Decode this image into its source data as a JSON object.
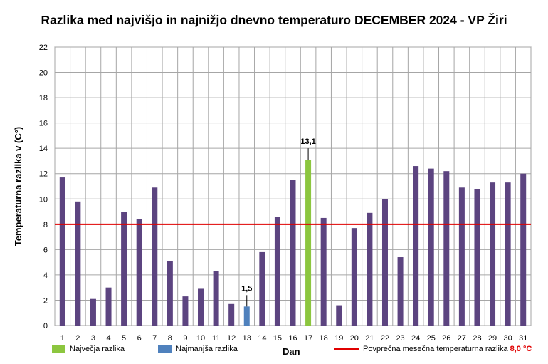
{
  "chart_data": {
    "type": "bar",
    "title": "Razlika med najvišjo in najnižjo dnevno temperaturo DECEMBER 2024 - VP Žiri",
    "xlabel": "Dan",
    "ylabel": "Temperaturna razlika v (C°)",
    "ylim": [
      0,
      22
    ],
    "ytick_step": 2,
    "grid": true,
    "categories": [
      "1",
      "2",
      "3",
      "4",
      "5",
      "6",
      "7",
      "8",
      "9",
      "10",
      "11",
      "12",
      "13",
      "14",
      "15",
      "16",
      "17",
      "18",
      "19",
      "20",
      "21",
      "22",
      "23",
      "24",
      "25",
      "26",
      "27",
      "28",
      "29",
      "30",
      "31"
    ],
    "values": [
      11.7,
      9.8,
      2.1,
      3.0,
      9.0,
      8.4,
      10.9,
      5.1,
      2.3,
      2.9,
      4.3,
      1.7,
      1.5,
      5.8,
      8.6,
      11.5,
      13.1,
      8.5,
      1.6,
      7.7,
      8.9,
      10.0,
      5.4,
      12.6,
      12.4,
      12.2,
      10.9,
      10.8,
      11.3,
      11.3,
      12.0
    ],
    "max": {
      "day": "17",
      "label": "13,1"
    },
    "min": {
      "day": "13",
      "label": "1,5"
    },
    "average": 8.0,
    "colors": {
      "bar": "#5c4480",
      "max": "#8cc63f",
      "min": "#4f81bd",
      "average": "#e00000"
    },
    "legend": {
      "placement": "bottom",
      "max_label": "Največja razlika",
      "min_label": "Najmanjša razlika",
      "avg_label": "Povprečna mesečna temperaturna razlika",
      "avg_value": "8,0 °C"
    }
  }
}
